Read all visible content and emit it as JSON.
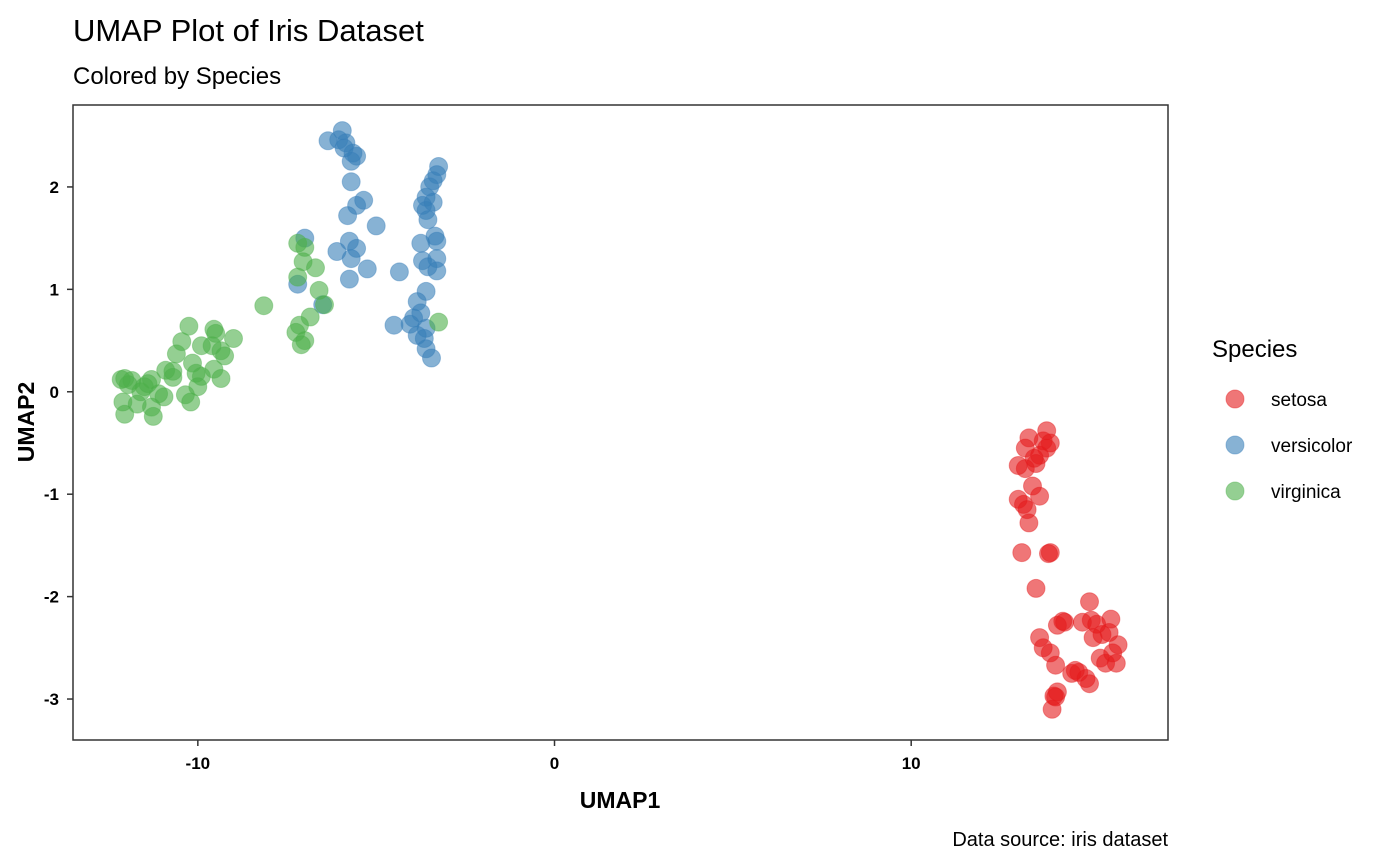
{
  "chart_data": {
    "type": "scatter",
    "title": "UMAP Plot of Iris Dataset",
    "subtitle": "Colored by Species",
    "xlabel": "UMAP1",
    "ylabel": "UMAP2",
    "caption": "Data source: iris dataset",
    "xlim": [
      -13.5,
      17.2
    ],
    "ylim": [
      -3.4,
      2.8
    ],
    "xticks": [
      -10,
      0,
      10
    ],
    "yticks": [
      -3,
      -2,
      -1,
      0,
      1,
      2
    ],
    "grid": false,
    "legend": {
      "title": "Species",
      "placement": "right"
    },
    "series": [
      {
        "name": "setosa",
        "color": "#E41A1C",
        "points": [
          [
            13.2,
            -0.75
          ],
          [
            13.0,
            -0.72
          ],
          [
            13.3,
            -0.45
          ],
          [
            13.2,
            -0.55
          ],
          [
            13.8,
            -0.38
          ],
          [
            13.7,
            -0.48
          ],
          [
            13.8,
            -0.55
          ],
          [
            13.6,
            -0.62
          ],
          [
            13.5,
            -0.7
          ],
          [
            13.4,
            -0.92
          ],
          [
            13.0,
            -1.05
          ],
          [
            13.15,
            -1.1
          ],
          [
            13.6,
            -1.02
          ],
          [
            13.3,
            -1.28
          ],
          [
            13.1,
            -1.57
          ],
          [
            13.9,
            -1.57
          ],
          [
            13.85,
            -1.58
          ],
          [
            13.5,
            -1.92
          ],
          [
            13.6,
            -2.4
          ],
          [
            14.1,
            -2.28
          ],
          [
            14.25,
            -2.24
          ],
          [
            13.9,
            -2.55
          ],
          [
            14.05,
            -2.67
          ],
          [
            14.5,
            -2.75
          ],
          [
            14.7,
            -2.74
          ],
          [
            14.0,
            -2.97
          ],
          [
            14.1,
            -2.93
          ],
          [
            14.05,
            -2.98
          ],
          [
            13.95,
            -3.1
          ],
          [
            14.8,
            -2.25
          ],
          [
            15.0,
            -2.05
          ],
          [
            15.05,
            -2.23
          ],
          [
            15.2,
            -2.27
          ],
          [
            15.1,
            -2.4
          ],
          [
            15.35,
            -2.37
          ],
          [
            15.55,
            -2.35
          ],
          [
            15.6,
            -2.22
          ],
          [
            15.3,
            -2.6
          ],
          [
            15.45,
            -2.65
          ],
          [
            15.8,
            -2.47
          ],
          [
            15.75,
            -2.65
          ],
          [
            15.0,
            -2.85
          ],
          [
            14.9,
            -2.8
          ],
          [
            15.65,
            -2.55
          ],
          [
            13.25,
            -1.15
          ],
          [
            13.45,
            -0.65
          ],
          [
            13.9,
            -0.5
          ],
          [
            14.3,
            -2.25
          ],
          [
            13.7,
            -2.5
          ],
          [
            14.6,
            -2.72
          ]
        ]
      },
      {
        "name": "versicolor",
        "color": "#377EB8",
        "points": [
          [
            -6.35,
            2.45
          ],
          [
            -6.05,
            2.46
          ],
          [
            -5.95,
            2.55
          ],
          [
            -5.85,
            2.43
          ],
          [
            -5.65,
            2.33
          ],
          [
            -5.55,
            2.3
          ],
          [
            -5.7,
            2.25
          ],
          [
            -5.7,
            2.05
          ],
          [
            -5.35,
            1.87
          ],
          [
            -5.55,
            1.82
          ],
          [
            -5.8,
            1.72
          ],
          [
            -5.0,
            1.62
          ],
          [
            -5.75,
            1.47
          ],
          [
            -5.55,
            1.4
          ],
          [
            -6.1,
            1.37
          ],
          [
            -5.7,
            1.3
          ],
          [
            -5.25,
            1.2
          ],
          [
            -5.75,
            1.1
          ],
          [
            -3.25,
            2.2
          ],
          [
            -3.3,
            2.12
          ],
          [
            -3.4,
            2.06
          ],
          [
            -3.5,
            2.0
          ],
          [
            -3.6,
            1.9
          ],
          [
            -3.7,
            1.82
          ],
          [
            -3.6,
            1.77
          ],
          [
            -3.55,
            1.68
          ],
          [
            -3.35,
            1.52
          ],
          [
            -3.3,
            1.47
          ],
          [
            -3.75,
            1.45
          ],
          [
            -3.3,
            1.3
          ],
          [
            -3.7,
            1.28
          ],
          [
            -3.55,
            1.22
          ],
          [
            -3.3,
            1.18
          ],
          [
            -4.35,
            1.17
          ],
          [
            -3.6,
            0.98
          ],
          [
            -3.85,
            0.88
          ],
          [
            -3.75,
            0.77
          ],
          [
            -3.95,
            0.72
          ],
          [
            -3.6,
            0.62
          ],
          [
            -4.5,
            0.65
          ],
          [
            -4.05,
            0.66
          ],
          [
            -3.85,
            0.55
          ],
          [
            -3.65,
            0.52
          ],
          [
            -3.6,
            0.42
          ],
          [
            -3.45,
            0.33
          ],
          [
            -7.0,
            1.5
          ],
          [
            -7.2,
            1.05
          ],
          [
            -6.5,
            0.85
          ],
          [
            -3.4,
            1.85
          ],
          [
            -5.9,
            2.38
          ]
        ]
      },
      {
        "name": "virginica",
        "color": "#4DAF4A",
        "points": [
          [
            -7.2,
            1.45
          ],
          [
            -7.0,
            1.41
          ],
          [
            -7.05,
            1.27
          ],
          [
            -6.7,
            1.21
          ],
          [
            -7.2,
            1.12
          ],
          [
            -6.6,
            0.99
          ],
          [
            -6.45,
            0.85
          ],
          [
            -8.15,
            0.84
          ],
          [
            -6.85,
            0.73
          ],
          [
            -7.15,
            0.65
          ],
          [
            -7.25,
            0.58
          ],
          [
            -7.0,
            0.5
          ],
          [
            -7.1,
            0.46
          ],
          [
            -3.25,
            0.68
          ],
          [
            -10.25,
            0.64
          ],
          [
            -9.55,
            0.61
          ],
          [
            -9.5,
            0.57
          ],
          [
            -9.0,
            0.52
          ],
          [
            -10.45,
            0.49
          ],
          [
            -9.9,
            0.45
          ],
          [
            -9.35,
            0.4
          ],
          [
            -10.6,
            0.37
          ],
          [
            -9.25,
            0.35
          ],
          [
            -10.15,
            0.28
          ],
          [
            -10.7,
            0.2
          ],
          [
            -9.55,
            0.22
          ],
          [
            -10.9,
            0.21
          ],
          [
            -10.05,
            0.18
          ],
          [
            -9.35,
            0.13
          ],
          [
            -11.3,
            0.12
          ],
          [
            -12.05,
            0.13
          ],
          [
            -11.85,
            0.11
          ],
          [
            -11.95,
            0.07
          ],
          [
            -11.5,
            0.05
          ],
          [
            -10.0,
            0.05
          ],
          [
            -11.1,
            -0.02
          ],
          [
            -10.35,
            -0.03
          ],
          [
            -12.1,
            -0.1
          ],
          [
            -11.7,
            -0.12
          ],
          [
            -11.3,
            -0.15
          ],
          [
            -10.2,
            -0.1
          ],
          [
            -12.05,
            -0.22
          ],
          [
            -11.25,
            -0.24
          ],
          [
            -10.95,
            -0.05
          ],
          [
            -11.6,
            0.0
          ],
          [
            -10.7,
            0.14
          ],
          [
            -9.9,
            0.15
          ],
          [
            -12.15,
            0.12
          ],
          [
            -9.6,
            0.45
          ],
          [
            -11.4,
            0.08
          ]
        ]
      }
    ]
  }
}
